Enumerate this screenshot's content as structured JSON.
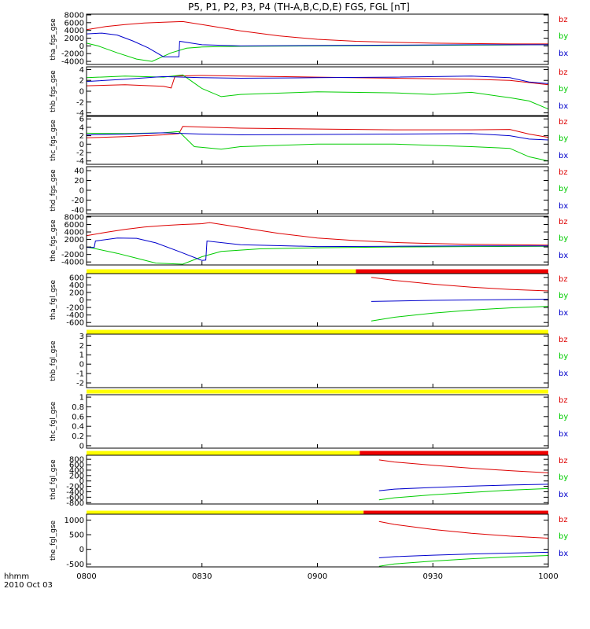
{
  "title": "P5, P1, P2, P3, P4 (TH-A,B,C,D,E) FGS, FGL [nT]",
  "colors": {
    "bz": "#dd0000",
    "by": "#00cc00",
    "bx": "#0000cc",
    "bar_yellow": "#ffff00",
    "bar_red": "#ee0000"
  },
  "legend": [
    "bz",
    "by",
    "bx"
  ],
  "corner_labels": {
    "line1": "hhmm",
    "line2": "2010 Oct 03"
  },
  "chart_data": {
    "type": "line",
    "x_ticks": [
      "0800",
      "0830",
      "0900",
      "0930",
      "1000"
    ],
    "x_range_minutes": [
      0,
      120
    ],
    "panels": [
      {
        "id": "tha_fgs",
        "ylabel": "tha_fgs_gse",
        "ylim": [
          -4800,
          8200
        ],
        "yticks": [
          -4000,
          -2000,
          0,
          2000,
          4000,
          6000,
          8000
        ],
        "series": [
          {
            "name": "bz",
            "x": [
              0,
              5,
              10,
              15,
              20,
              25,
              30,
              40,
              50,
              60,
              70,
              80,
              90,
              100,
              110,
              120
            ],
            "y": [
              4200,
              5000,
              5500,
              5900,
              6100,
              6300,
              5500,
              3900,
              2600,
              1700,
              1200,
              900,
              700,
              600,
              500,
              500
            ]
          },
          {
            "name": "by",
            "x": [
              0,
              3,
              8,
              13,
              17,
              22,
              26,
              30,
              40,
              60,
              80,
              100,
              120
            ],
            "y": [
              700,
              0,
              -1800,
              -3400,
              -4000,
              -1800,
              -600,
              -300,
              -100,
              0,
              100,
              200,
              300
            ]
          },
          {
            "name": "bx",
            "x": [
              0,
              4,
              8,
              12,
              16,
              20,
              24,
              24.2,
              30,
              40,
              60,
              80,
              100,
              120
            ],
            "y": [
              3100,
              3300,
              2800,
              1300,
              -500,
              -2800,
              -2800,
              1200,
              300,
              0,
              100,
              200,
              300,
              300
            ]
          }
        ]
      },
      {
        "id": "thb_fgs",
        "ylabel": "thb_fgs_gse",
        "ylim": [
          -4.5,
          4.5
        ],
        "yticks": [
          -4,
          -2,
          0,
          2,
          4
        ],
        "series": [
          {
            "name": "bz",
            "x": [
              0,
              10,
              20,
              22,
              23,
              30,
              40,
              60,
              80,
              100,
              110,
              115,
              120
            ],
            "y": [
              1.0,
              1.2,
              0.9,
              0.6,
              2.8,
              2.9,
              2.8,
              2.6,
              2.4,
              2.2,
              2.0,
              1.6,
              1.2
            ]
          },
          {
            "name": "by",
            "x": [
              0,
              10,
              20,
              25,
              30,
              35,
              40,
              60,
              80,
              90,
              100,
              110,
              115,
              120
            ],
            "y": [
              2.5,
              2.8,
              2.6,
              3.0,
              0.5,
              -1.0,
              -0.6,
              -0.1,
              -0.3,
              -0.6,
              -0.2,
              -1.2,
              -1.8,
              -3.3
            ]
          },
          {
            "name": "bx",
            "x": [
              0,
              10,
              20,
              30,
              40,
              60,
              80,
              100,
              110,
              115,
              120
            ],
            "y": [
              1.8,
              2.2,
              2.7,
              2.5,
              2.4,
              2.5,
              2.6,
              2.8,
              2.5,
              1.7,
              1.4
            ]
          }
        ]
      },
      {
        "id": "thc_fgs",
        "ylabel": "thc_fgs_gse",
        "ylim": [
          -4.8,
          6.6
        ],
        "yticks": [
          -4,
          -2,
          0,
          2,
          4,
          6
        ],
        "series": [
          {
            "name": "bz",
            "x": [
              0,
              10,
              20,
              24,
              25,
              40,
              60,
              80,
              100,
              110,
              115,
              120
            ],
            "y": [
              1.5,
              1.8,
              2.2,
              2.5,
              4.2,
              3.8,
              3.6,
              3.4,
              3.4,
              3.5,
              2.4,
              1.6
            ]
          },
          {
            "name": "by",
            "x": [
              0,
              10,
              20,
              24,
              28,
              35,
              40,
              60,
              80,
              100,
              110,
              115,
              120
            ],
            "y": [
              2.6,
              2.5,
              2.7,
              3.0,
              -0.6,
              -1.2,
              -0.6,
              0.0,
              0.0,
              -0.6,
              -1.0,
              -3.0,
              -4.0
            ]
          },
          {
            "name": "bx",
            "x": [
              0,
              10,
              20,
              30,
              40,
              60,
              80,
              100,
              110,
              115,
              120
            ],
            "y": [
              2.2,
              2.4,
              2.7,
              2.4,
              2.2,
              2.3,
              2.4,
              2.5,
              2.0,
              1.2,
              1.0
            ]
          }
        ]
      },
      {
        "id": "thd_fgs",
        "ylabel": "thd_fgs_gse",
        "ylim": [
          -48,
          48
        ],
        "yticks": [
          -40,
          -20,
          0,
          20,
          40
        ],
        "series": []
      },
      {
        "id": "the_fgs",
        "ylabel": "the_fgs_gse",
        "ylim": [
          -4800,
          8200
        ],
        "yticks": [
          -4000,
          -2000,
          0,
          2000,
          4000,
          6000,
          8000
        ],
        "series": [
          {
            "name": "bz",
            "x": [
              0,
              5,
              10,
              15,
              20,
              25,
              30,
              32,
              40,
              50,
              60,
              70,
              80,
              90,
              100,
              110,
              120
            ],
            "y": [
              3000,
              3900,
              4700,
              5300,
              5700,
              6000,
              6200,
              6500,
              5200,
              3600,
              2400,
              1700,
              1200,
              900,
              700,
              600,
              500
            ]
          },
          {
            "name": "by",
            "x": [
              0,
              3,
              8,
              13,
              18,
              25,
              30,
              35,
              45,
              60,
              80,
              100,
              120
            ],
            "y": [
              0,
              -600,
              -1700,
              -3000,
              -4300,
              -4600,
              -2600,
              -1200,
              -500,
              -200,
              0,
              100,
              200
            ]
          },
          {
            "name": "bx",
            "x": [
              0,
              2,
              2.3,
              8,
              13,
              18,
              24,
              30,
              31,
              31.3,
              40,
              60,
              80,
              100,
              120
            ],
            "y": [
              -100,
              -100,
              1600,
              2400,
              2300,
              1100,
              -1200,
              -3600,
              -3500,
              1600,
              600,
              100,
              200,
              300,
              300
            ]
          }
        ]
      },
      {
        "id": "tha_fgl",
        "ylabel": "tha_fgl_gse",
        "ylim": [
          -700,
          700
        ],
        "yticks": [
          -600,
          -400,
          -200,
          0,
          200,
          400,
          600
        ],
        "bar": {
          "yellow_to": 70,
          "red_to": 120
        },
        "series": [
          {
            "name": "bz",
            "x": [
              74,
              80,
              90,
              100,
              110,
              120
            ],
            "y": [
              600,
              520,
              420,
              340,
              280,
              240
            ]
          },
          {
            "name": "by",
            "x": [
              74,
              80,
              90,
              100,
              110,
              120
            ],
            "y": [
              -560,
              -460,
              -350,
              -270,
              -210,
              -170
            ]
          },
          {
            "name": "bx",
            "x": [
              74,
              80,
              90,
              100,
              110,
              120
            ],
            "y": [
              -40,
              -30,
              -10,
              0,
              10,
              20
            ]
          }
        ]
      },
      {
        "id": "thb_fgl",
        "ylabel": "thb_fgl_gse",
        "ylim": [
          -2.5,
          3.2
        ],
        "yticks": [
          -2,
          -1,
          0,
          1,
          2,
          3
        ],
        "bar": {
          "yellow_to": 120,
          "red_to": 120
        },
        "series": []
      },
      {
        "id": "thc_fgl",
        "ylabel": "thc_fgl_gse",
        "ylim": [
          -0.05,
          1.05
        ],
        "yticks": [
          0.0,
          0.2,
          0.4,
          0.6,
          0.8,
          1.0
        ],
        "bar": {
          "yellow_to": 120,
          "red_to": 120
        },
        "series": []
      },
      {
        "id": "thd_fgl",
        "ylabel": "thd_fgl_gse",
        "ylim": [
          -850,
          950
        ],
        "yticks": [
          -800,
          -600,
          -400,
          -200,
          0,
          200,
          400,
          600,
          800
        ],
        "bar": {
          "yellow_to": 71,
          "red_to": 120
        },
        "series": [
          {
            "name": "bz",
            "x": [
              76,
              80,
              90,
              100,
              110,
              120
            ],
            "y": [
              780,
              700,
              580,
              470,
              380,
              300
            ]
          },
          {
            "name": "by",
            "x": [
              76,
              80,
              90,
              100,
              110,
              120
            ],
            "y": [
              -700,
              -620,
              -510,
              -420,
              -340,
              -280
            ]
          },
          {
            "name": "bx",
            "x": [
              76,
              80,
              90,
              100,
              110,
              120
            ],
            "y": [
              -360,
              -300,
              -240,
              -190,
              -150,
              -120
            ]
          }
        ]
      },
      {
        "id": "the_fgl",
        "ylabel": "the_fgl_gse",
        "ylim": [
          -600,
          1200
        ],
        "yticks": [
          -500,
          0,
          500,
          1000
        ],
        "bar": {
          "yellow_to": 72,
          "red_to": 120
        },
        "series": [
          {
            "name": "bz",
            "x": [
              76,
              80,
              90,
              100,
              110,
              120
            ],
            "y": [
              950,
              850,
              680,
              550,
              450,
              380
            ]
          },
          {
            "name": "by",
            "x": [
              76,
              80,
              90,
              100,
              110,
              120
            ],
            "y": [
              -580,
              -500,
              -400,
              -320,
              -260,
              -210
            ]
          },
          {
            "name": "bx",
            "x": [
              76,
              80,
              90,
              100,
              110,
              120
            ],
            "y": [
              -290,
              -250,
              -200,
              -160,
              -130,
              -100
            ]
          }
        ]
      }
    ]
  }
}
